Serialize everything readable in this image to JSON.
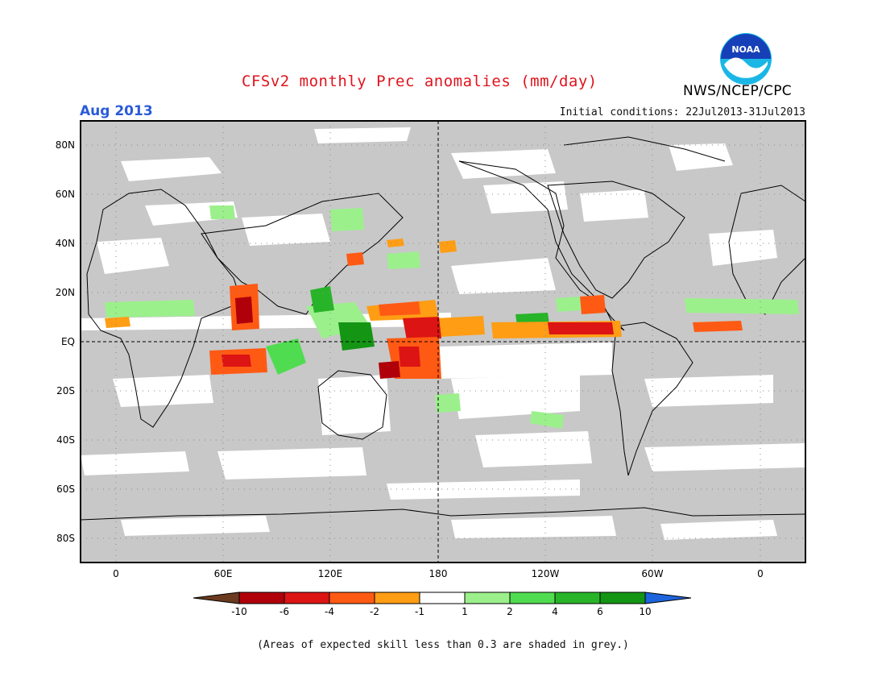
{
  "header": {
    "title": "CFSv2 monthly Prec anomalies (mm/day)",
    "agency": "NWS/NCEP/CPC",
    "logo_text": "NOAA",
    "month": "Aug 2013",
    "initial_conditions": "Initial conditions: 22Jul2013-31Jul2013"
  },
  "map": {
    "lat_labels": [
      "80N",
      "60N",
      "40N",
      "20N",
      "EQ",
      "20S",
      "40S",
      "60S",
      "80S"
    ],
    "lon_labels": [
      "0",
      "60E",
      "120E",
      "180",
      "120W",
      "60W",
      "0"
    ],
    "grey_color": "#c8c8c8",
    "ocean_color": "#ffffff"
  },
  "colorbar": {
    "tick_labels": [
      "-10",
      "-6",
      "-4",
      "-2",
      "-1",
      "1",
      "2",
      "4",
      "6",
      "10"
    ],
    "colors": [
      "#6b3a1f",
      "#b0000a",
      "#dc1414",
      "#ff5a14",
      "#ff9d14",
      "#ffffff",
      "#9cf08c",
      "#50dc50",
      "#28b428",
      "#149614",
      "#1e64dc"
    ]
  },
  "footnote": "(Areas of expected skill less than 0.3 are shaded in grey.)"
}
